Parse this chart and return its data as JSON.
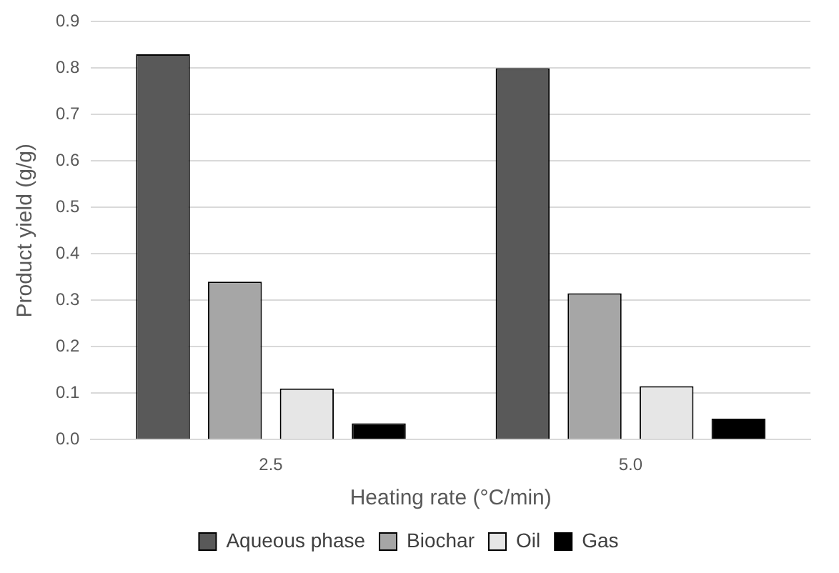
{
  "chart_data": {
    "type": "bar",
    "xlabel": "Heating rate (°C/min)",
    "ylabel": "Product yield (g/g)",
    "categories": [
      "2.5",
      "5.0"
    ],
    "series": [
      {
        "name": "Aqueous phase",
        "color": "#595959",
        "values": [
          0.83,
          0.8
        ]
      },
      {
        "name": "Biochar",
        "color": "#a6a6a6",
        "values": [
          0.34,
          0.315
        ]
      },
      {
        "name": "Oil",
        "color": "#e6e6e6",
        "values": [
          0.11,
          0.115
        ]
      },
      {
        "name": "Gas",
        "color": "#000000",
        "values": [
          0.035,
          0.045
        ]
      }
    ],
    "ylim": [
      0,
      0.9
    ],
    "yticks": [
      {
        "value": 0,
        "label": "0.0"
      },
      0.1,
      0.2,
      0.3,
      0.4,
      0.5,
      0.6,
      0.7,
      0.8,
      0.9
    ],
    "grid": "y",
    "legend": "bottom"
  }
}
